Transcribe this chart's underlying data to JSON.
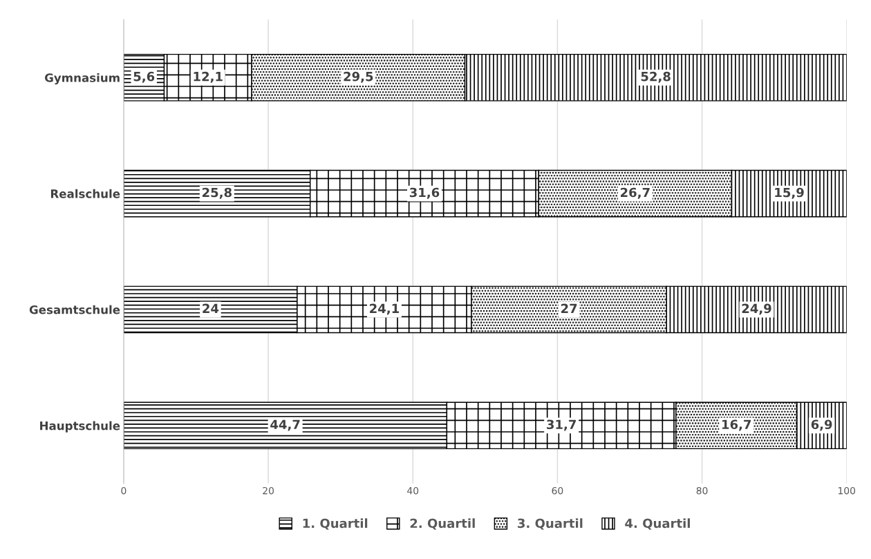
{
  "chart_data": {
    "type": "bar",
    "orientation": "horizontal",
    "stacked": true,
    "categories": [
      "Gymnasium",
      "Realschule",
      "Gesamtschule",
      "Hauptschule"
    ],
    "series": [
      {
        "name": "1. Quartil",
        "color": "#000000",
        "values": [
          5.6,
          25.8,
          24,
          44.7
        ],
        "value_labels": [
          "5,6",
          "25,8",
          "24",
          "44,7"
        ]
      },
      {
        "name": "2. Quartil",
        "color": "#000000",
        "values": [
          12.1,
          31.6,
          24.1,
          31.7
        ],
        "value_labels": [
          "12,1",
          "31,6",
          "24,1",
          "31,7"
        ]
      },
      {
        "name": "3. Quartil",
        "color": "#000000",
        "values": [
          29.5,
          26.7,
          27,
          16.7
        ],
        "value_labels": [
          "29,5",
          "26,7",
          "27",
          "16,7"
        ]
      },
      {
        "name": "4. Quartil",
        "color": "#000000",
        "values": [
          52.8,
          15.9,
          24.9,
          6.9
        ],
        "value_labels": [
          "52,8",
          "15,9",
          "24,9",
          "6,9"
        ]
      }
    ],
    "xlim": [
      0,
      100
    ],
    "xticks": [
      0,
      20,
      40,
      60,
      80,
      100
    ],
    "grid": "x",
    "legend": "bottom"
  }
}
